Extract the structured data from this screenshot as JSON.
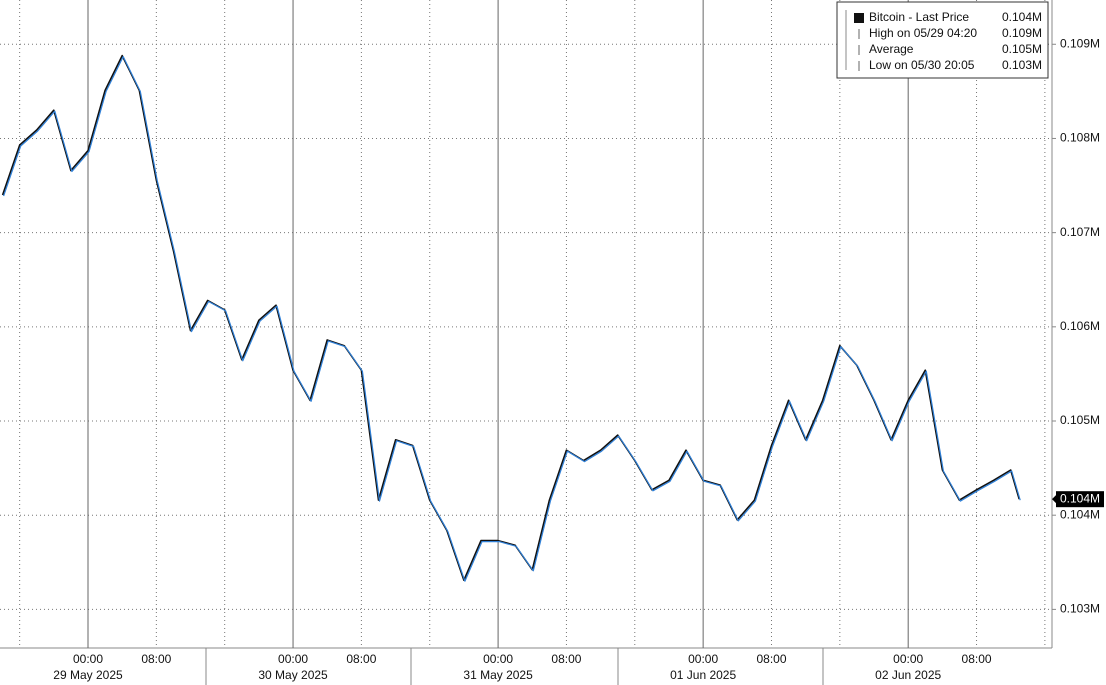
{
  "chart_data": {
    "type": "line",
    "legend": [
      {
        "name": "Bitcoin - Last Price",
        "value_label": "0.104M"
      },
      {
        "name": "High on 05/29 04:20",
        "value_label": "0.109M"
      },
      {
        "name": "Average",
        "value_label": "0.105M"
      },
      {
        "name": "Low on 05/30 20:05",
        "value_label": "0.103M"
      }
    ],
    "last_price": {
      "value": 0.10417,
      "label": "0.104M"
    },
    "x": [
      "2025-05-28 14:00",
      "2025-05-28 16:00",
      "2025-05-28 18:00",
      "2025-05-28 20:00",
      "2025-05-28 22:00",
      "2025-05-29 00:00",
      "2025-05-29 02:00",
      "2025-05-29 04:00",
      "2025-05-29 06:00",
      "2025-05-29 08:00",
      "2025-05-29 10:00",
      "2025-05-29 12:00",
      "2025-05-29 14:00",
      "2025-05-29 16:00",
      "2025-05-29 18:00",
      "2025-05-29 20:00",
      "2025-05-29 22:00",
      "2025-05-30 00:00",
      "2025-05-30 02:00",
      "2025-05-30 04:00",
      "2025-05-30 06:00",
      "2025-05-30 08:00",
      "2025-05-30 10:00",
      "2025-05-30 12:00",
      "2025-05-30 14:00",
      "2025-05-30 16:00",
      "2025-05-30 18:00",
      "2025-05-30 20:00",
      "2025-05-30 22:00",
      "2025-05-31 00:00",
      "2025-05-31 02:00",
      "2025-05-31 04:00",
      "2025-05-31 06:00",
      "2025-05-31 08:00",
      "2025-05-31 10:00",
      "2025-05-31 12:00",
      "2025-05-31 14:00",
      "2025-05-31 16:00",
      "2025-05-31 18:00",
      "2025-05-31 20:00",
      "2025-05-31 22:00",
      "2025-06-01 00:00",
      "2025-06-01 02:00",
      "2025-06-01 04:00",
      "2025-06-01 06:00",
      "2025-06-01 08:00",
      "2025-06-01 10:00",
      "2025-06-01 12:00",
      "2025-06-01 14:00",
      "2025-06-01 16:00",
      "2025-06-01 18:00",
      "2025-06-01 20:00",
      "2025-06-01 22:00",
      "2025-06-02 00:00",
      "2025-06-02 02:00",
      "2025-06-02 04:00",
      "2025-06-02 06:00",
      "2025-06-02 08:00",
      "2025-06-02 10:00",
      "2025-06-02 12:00",
      "2025-06-02 13:00"
    ],
    "series": [
      {
        "name": "Bitcoin",
        "color": "#111111",
        "highlight": "#2f80d8",
        "values": [
          0.1074,
          0.10793,
          0.10809,
          0.1083,
          0.10766,
          0.10787,
          0.10851,
          0.10888,
          0.10851,
          0.10756,
          0.10681,
          0.10596,
          0.10628,
          0.10618,
          0.10565,
          0.10607,
          0.10623,
          0.10554,
          0.10522,
          0.10586,
          0.1058,
          0.10554,
          0.10416,
          0.1048,
          0.10474,
          0.10416,
          0.10384,
          0.10331,
          0.10373,
          0.10373,
          0.10368,
          0.10342,
          0.10416,
          0.10469,
          0.10458,
          0.10469,
          0.10485,
          0.10458,
          0.10427,
          0.10437,
          0.10469,
          0.10437,
          0.10432,
          0.10395,
          0.10416,
          0.10474,
          0.10522,
          0.1048,
          0.10522,
          0.1058,
          0.10559,
          0.10522,
          0.1048,
          0.10522,
          0.10554,
          0.10448,
          0.10416,
          0.10427,
          0.10437,
          0.10448,
          0.10417
        ]
      }
    ],
    "xlim": [
      "2025-05-28 13:42",
      "2025-06-02 16:50"
    ],
    "ylim": [
      0.10259,
      0.10947
    ],
    "yticks": [
      {
        "value": 0.103,
        "label": "0.103M"
      },
      {
        "value": 0.104,
        "label": "0.104M"
      },
      {
        "value": 0.105,
        "label": "0.105M"
      },
      {
        "value": 0.106,
        "label": "0.106M"
      },
      {
        "value": 0.107,
        "label": "0.107M"
      },
      {
        "value": 0.108,
        "label": "0.108M"
      },
      {
        "value": 0.109,
        "label": "0.109M"
      }
    ],
    "xticks": [
      {
        "value": "2025-05-29 00:00",
        "label": "00:00"
      },
      {
        "value": "2025-05-29 08:00",
        "label": "08:00"
      },
      {
        "value": "2025-05-30 00:00",
        "label": "00:00"
      },
      {
        "value": "2025-05-30 08:00",
        "label": "08:00"
      },
      {
        "value": "2025-05-31 00:00",
        "label": "00:00"
      },
      {
        "value": "2025-05-31 08:00",
        "label": "08:00"
      },
      {
        "value": "2025-06-01 00:00",
        "label": "00:00"
      },
      {
        "value": "2025-06-01 08:00",
        "label": "08:00"
      },
      {
        "value": "2025-06-02 00:00",
        "label": "00:00"
      },
      {
        "value": "2025-06-02 08:00",
        "label": "08:00"
      }
    ],
    "xminor": [
      "2025-05-28 16:00",
      "2025-05-29 16:00",
      "2025-05-30 16:00",
      "2025-05-31 16:00",
      "2025-06-01 16:00",
      "2025-06-02 16:00"
    ],
    "xdays": [
      {
        "value": "2025-05-29 00:00",
        "label": "29 May 2025"
      },
      {
        "value": "2025-05-30 00:00",
        "label": "30 May 2025"
      },
      {
        "value": "2025-05-31 00:00",
        "label": "31 May 2025"
      },
      {
        "value": "2025-06-01 00:00",
        "label": "01 Jun 2025"
      },
      {
        "value": "2025-06-02 00:00",
        "label": "02 Jun 2025"
      }
    ],
    "grid": true
  }
}
